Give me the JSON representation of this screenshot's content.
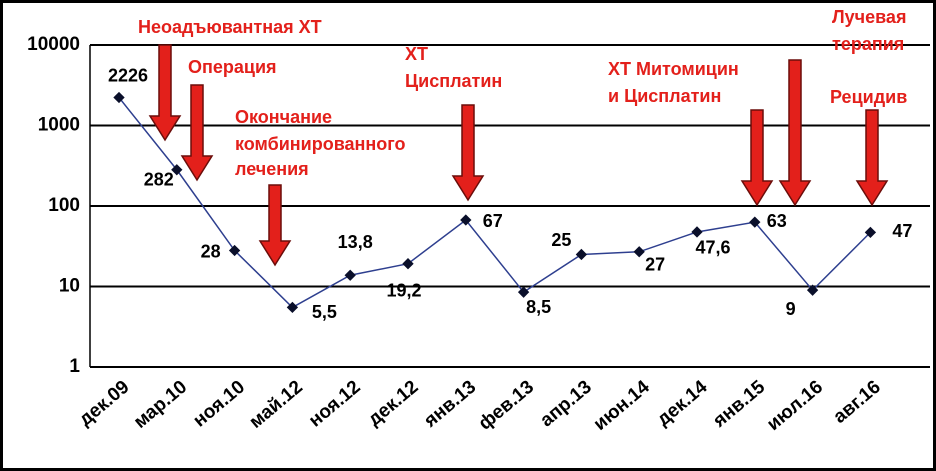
{
  "chart_data": {
    "type": "line",
    "categories": [
      "дек.09",
      "мар.10",
      "ноя.10",
      "май.12",
      "ноя.12",
      "дек.12",
      "янв.13",
      "фев.13",
      "апр.13",
      "июн.14",
      "дек.14",
      "янв.15",
      "июл.16",
      "авг.16"
    ],
    "series": [
      {
        "color": "#2e3f8f",
        "values": [
          2226,
          282,
          28,
          5.5,
          13.8,
          19.2,
          67,
          8.5,
          25,
          27,
          47.6,
          63,
          9,
          47
        ],
        "value_labels": [
          "2226",
          "282",
          "28",
          "5,5",
          "13,8",
          "19,2",
          "67",
          "8,5",
          "25",
          "27",
          "47,6",
          "63",
          "9",
          "47"
        ]
      }
    ],
    "log_scale": true,
    "ylim": [
      1,
      10000
    ],
    "yticks": [
      1,
      10,
      100,
      1000,
      10000
    ],
    "grid": true,
    "annotations": [
      [
        "Неоадъювантная ХТ"
      ],
      [
        "Операция"
      ],
      [
        "Окончание",
        "комбинированного",
        "лечения"
      ],
      [
        "ХТ",
        "Цисплатин"
      ],
      [
        "ХТ Митомицин",
        "и Цисплатин"
      ],
      [
        "Лучевая",
        "терапия"
      ],
      [
        "Рецидив"
      ]
    ],
    "annotation_color": "#e3201b"
  }
}
